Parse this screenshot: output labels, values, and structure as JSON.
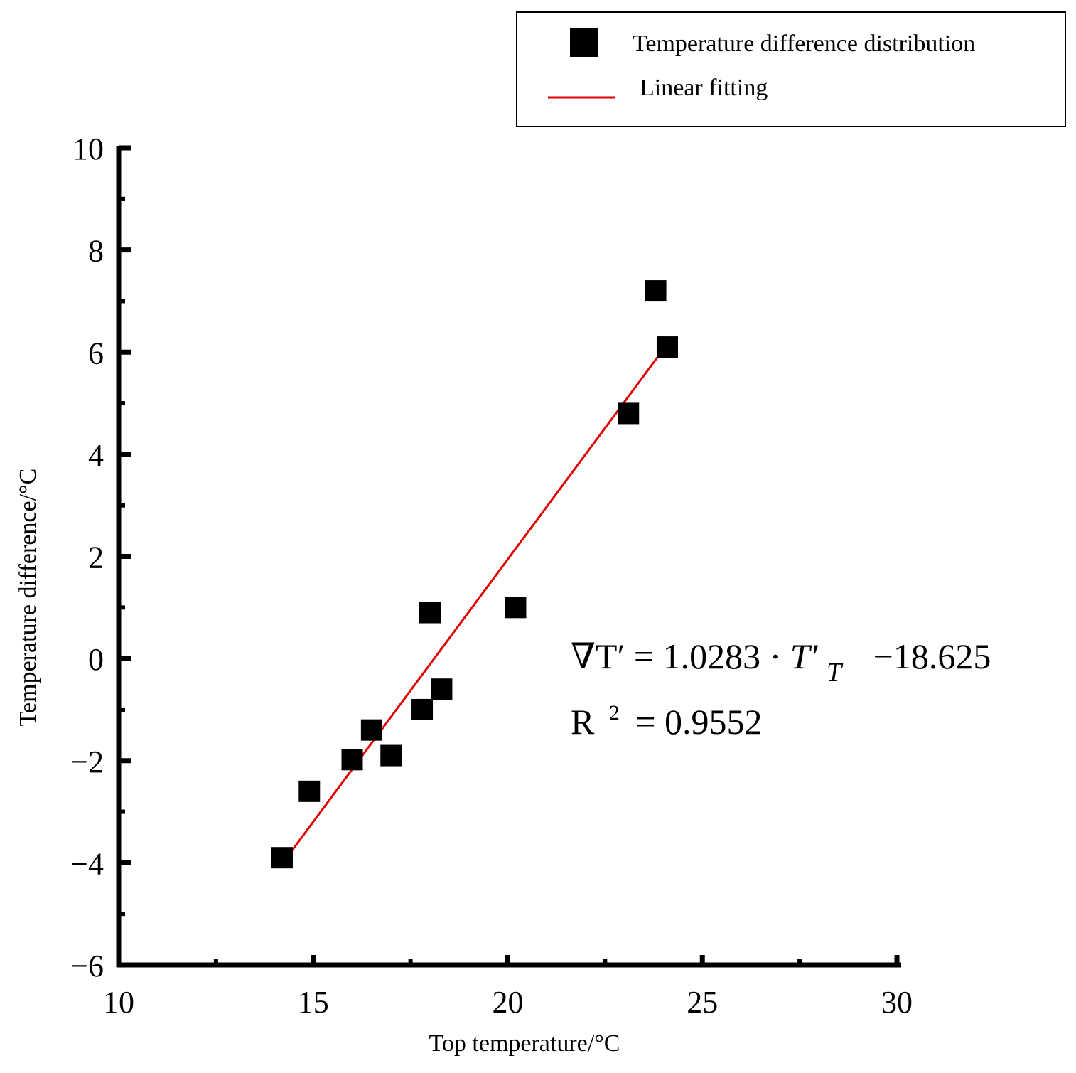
{
  "chart_data": {
    "type": "scatter",
    "title": "",
    "xlabel": "Top temperature/°C",
    "ylabel": "Temperature difference/°C",
    "xlim": [
      10,
      30
    ],
    "ylim": [
      -6,
      10
    ],
    "xticks": [
      10,
      15,
      20,
      25,
      30
    ],
    "yticks": [
      -6,
      -4,
      -2,
      0,
      2,
      4,
      6,
      8,
      10
    ],
    "xtick_labels": [
      "10",
      "15",
      "20",
      "25",
      "30"
    ],
    "ytick_labels": [
      "−6",
      "−4",
      "−2",
      "0",
      "2",
      "4",
      "6",
      "8",
      "10"
    ],
    "grid": false,
    "legend_position": "top-right",
    "series": [
      {
        "name": "Temperature difference distribution",
        "kind": "scatter",
        "marker": "square",
        "color": "#000000",
        "x": [
          14.2,
          14.9,
          16.0,
          16.5,
          17.0,
          17.8,
          18.0,
          18.3,
          20.2,
          23.1,
          23.8,
          24.1
        ],
        "y": [
          -3.9,
          -2.6,
          -1.98,
          -1.4,
          -1.9,
          -1.0,
          0.9,
          -0.6,
          1.0,
          4.8,
          7.2,
          6.1
        ]
      },
      {
        "name": "Linear fitting",
        "kind": "line",
        "color": "#e00000",
        "x": [
          14.2,
          24.1
        ],
        "y": [
          -4.02,
          6.16
        ]
      }
    ],
    "annotations": {
      "equation_lhs": "∇T′ = 1.0283 · ",
      "equation_var": "T′",
      "equation_sub": "T",
      "equation_rhs": "−18.625",
      "r2_label": "R",
      "r2_sup": "2",
      "r2_value": "= 0.9552"
    }
  }
}
